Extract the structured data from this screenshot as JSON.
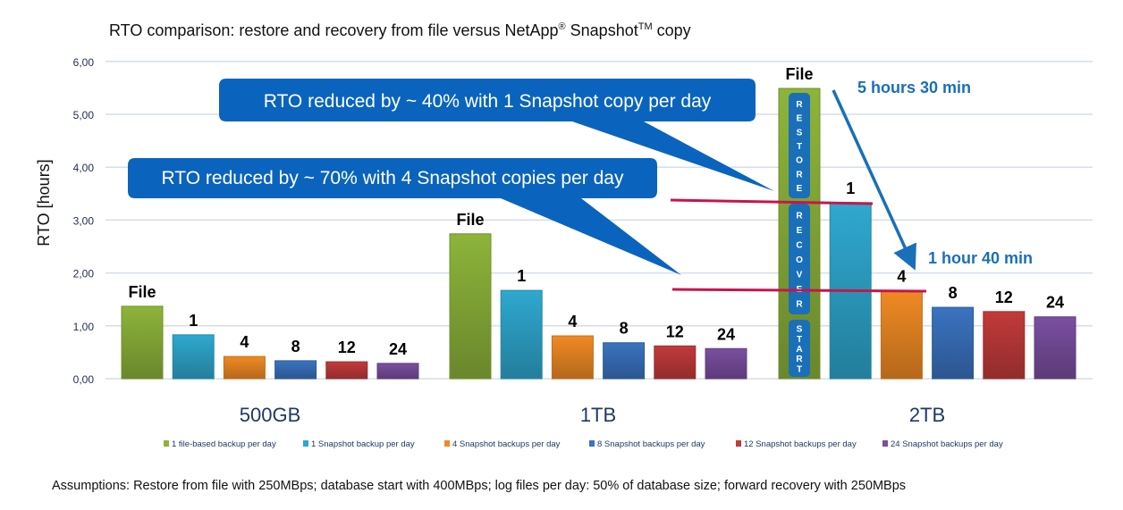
{
  "chart_data": {
    "type": "bar",
    "title": "RTO comparison: restore and recovery from file versus NetApp",
    "title_reg": "®",
    "title_mid": " Snapshot",
    "title_tm": "TM",
    "title_end": " copy",
    "ylabel": "RTO [hours]",
    "xlabel": "",
    "ylim": [
      0,
      6
    ],
    "yticks": [
      "0,00",
      "1,00",
      "2,00",
      "3,00",
      "4,00",
      "5,00",
      "6,00"
    ],
    "grid": true,
    "legend_position": "bottom",
    "categories": [
      "500GB",
      "1TB",
      "2TB"
    ],
    "bar_labels": [
      "File",
      "1",
      "4",
      "8",
      "12",
      "24"
    ],
    "series": [
      {
        "name": "1 file-based backup per day",
        "color": "#8db43a",
        "values": [
          1.37,
          2.74,
          5.49
        ]
      },
      {
        "name": "1 Snapshot backup per day",
        "color": "#2fa8cf",
        "values": [
          0.83,
          1.67,
          3.33
        ]
      },
      {
        "name": "4 Snapshot backups per day",
        "color": "#f08a24",
        "values": [
          0.42,
          0.81,
          1.66
        ]
      },
      {
        "name": "8 Snapshot backups per day",
        "color": "#3a73c0",
        "values": [
          0.34,
          0.68,
          1.35
        ]
      },
      {
        "name": "12 Snapshot backups per day",
        "color": "#c23a3a",
        "values": [
          0.32,
          0.62,
          1.27
        ]
      },
      {
        "name": "24 Snapshot backups per day",
        "color": "#7a4fa0",
        "values": [
          0.29,
          0.57,
          1.17
        ]
      }
    ],
    "annotations": {
      "callout1": "RTO reduced by ~ 40% with 1 Snapshot copy per day",
      "callout2": "RTO reduced by ~ 70% with 4 Snapshot copies per day",
      "from_label": "5 hours 30 min",
      "to_label": "1 hour 40 min",
      "phases": [
        "RESTORE",
        "RECOVER",
        "START"
      ]
    },
    "footnote": "Assumptions:  Restore from file with 250MBps; database start with 400MBps; log files per day: 50% of database size; forward recovery with 250MBps"
  }
}
